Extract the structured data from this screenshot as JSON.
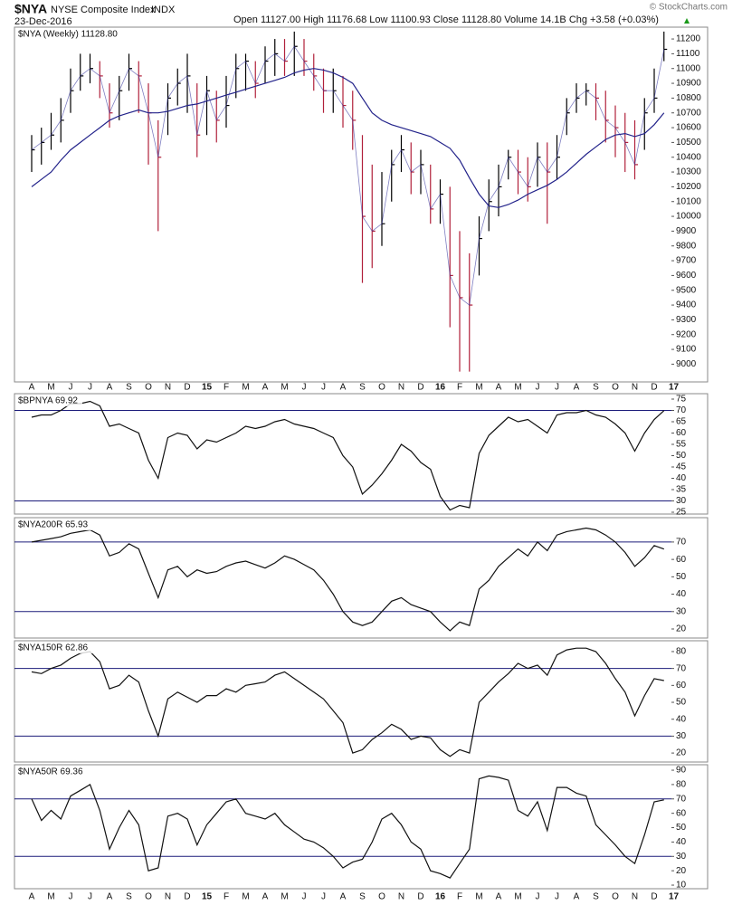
{
  "header": {
    "symbol": "$NYA",
    "name": "NYSE Composite Index",
    "exchange": "INDX",
    "date": "23-Dec-2016",
    "quote": "Open 11127.00  High 11176.68  Low 11100.93  Close 11128.80  Volume 14.1B  Chg +3.58 (+0.03%)",
    "credit": "© StockCharts.com"
  },
  "chart_data": [
    {
      "type": "ohlc",
      "legend": "$NYA (Weekly) 11128.80",
      "up_color": "#000000",
      "down_color": "#b0203a",
      "x_labels": [
        "A",
        "M",
        "J",
        "J",
        "A",
        "S",
        "O",
        "N",
        "D",
        "15",
        "F",
        "M",
        "A",
        "M",
        "J",
        "J",
        "A",
        "S",
        "O",
        "N",
        "D",
        "16",
        "F",
        "M",
        "A",
        "M",
        "J",
        "J",
        "A",
        "S",
        "O",
        "N",
        "D",
        "17"
      ],
      "close": [
        10450,
        10500,
        10550,
        10650,
        10850,
        10950,
        11000,
        10950,
        10700,
        10850,
        11000,
        10950,
        10700,
        10400,
        10800,
        10900,
        10950,
        10550,
        10850,
        10650,
        10750,
        11000,
        11050,
        10900,
        11050,
        11100,
        11050,
        11150,
        11050,
        10950,
        10850,
        10850,
        10750,
        10650,
        10000,
        9900,
        9950,
        10350,
        10450,
        10300,
        10350,
        10050,
        10150,
        9600,
        9450,
        9400,
        9850,
        10100,
        10200,
        10400,
        10300,
        10200,
        10400,
        10300,
        10400,
        10700,
        10800,
        10850,
        10800,
        10650,
        10600,
        10500,
        10350,
        10700,
        10800,
        11130
      ],
      "high": [
        10550,
        10600,
        10700,
        10800,
        11000,
        11100,
        11100,
        11050,
        10900,
        10950,
        11100,
        11050,
        10900,
        10650,
        10900,
        11000,
        11100,
        10900,
        10950,
        10850,
        10950,
        11100,
        11100,
        11050,
        11150,
        11200,
        11200,
        11250,
        11200,
        11100,
        11000,
        11000,
        10950,
        10850,
        10550,
        10350,
        10300,
        10450,
        10550,
        10500,
        10450,
        10350,
        10250,
        10200,
        9900,
        9750,
        10000,
        10250,
        10350,
        10450,
        10450,
        10400,
        10500,
        10500,
        10550,
        10800,
        10900,
        10900,
        10900,
        10850,
        10750,
        10700,
        10650,
        10800,
        11000,
        11250
      ],
      "low": [
        10300,
        10350,
        10450,
        10500,
        10700,
        10850,
        10900,
        10800,
        10600,
        10650,
        10850,
        10700,
        10350,
        9900,
        10550,
        10750,
        10700,
        10400,
        10550,
        10500,
        10600,
        10800,
        10850,
        10800,
        10900,
        10950,
        10950,
        10950,
        10950,
        10850,
        10700,
        10700,
        10600,
        10450,
        9550,
        9650,
        9800,
        10100,
        10300,
        10150,
        10150,
        9950,
        9950,
        9250,
        8950,
        8950,
        9600,
        9900,
        10000,
        10250,
        10150,
        10100,
        10200,
        9950,
        10250,
        10550,
        10700,
        10750,
        10650,
        10500,
        10400,
        10300,
        10250,
        10450,
        10700,
        11050
      ],
      "moving_average": {
        "color": "#22228a",
        "values": [
          10200,
          10250,
          10300,
          10380,
          10450,
          10500,
          10550,
          10600,
          10650,
          10680,
          10700,
          10720,
          10700,
          10700,
          10710,
          10730,
          10750,
          10760,
          10780,
          10800,
          10820,
          10840,
          10860,
          10880,
          10900,
          10920,
          10940,
          10970,
          10990,
          11000,
          10990,
          10970,
          10940,
          10900,
          10800,
          10700,
          10650,
          10620,
          10600,
          10580,
          10560,
          10540,
          10500,
          10460,
          10380,
          10260,
          10150,
          10070,
          10060,
          10080,
          10110,
          10150,
          10180,
          10210,
          10250,
          10300,
          10360,
          10420,
          10470,
          10520,
          10550,
          10560,
          10540,
          10560,
          10620,
          10700
        ]
      },
      "ylim": [
        8880,
        11280
      ],
      "yticks": [
        9000,
        9100,
        9200,
        9300,
        9400,
        9500,
        9600,
        9700,
        9800,
        9900,
        10000,
        10100,
        10200,
        10300,
        10400,
        10500,
        10600,
        10700,
        10800,
        10900,
        11000,
        11100,
        11200
      ]
    },
    {
      "type": "line",
      "legend": "$BPNYA 69.92",
      "color": "#111111",
      "reference_color": "#1c1c7a",
      "reference_lines": [
        70,
        30
      ],
      "values": [
        67,
        68,
        68,
        70,
        73,
        73,
        74,
        72,
        63,
        64,
        62,
        60,
        48,
        40,
        58,
        60,
        59,
        53,
        57,
        56,
        58,
        60,
        63,
        62,
        63,
        65,
        66,
        64,
        63,
        62,
        60,
        58,
        50,
        45,
        33,
        37,
        42,
        48,
        55,
        52,
        47,
        44,
        32,
        26,
        28,
        27,
        51,
        59,
        63,
        67,
        65,
        66,
        63,
        60,
        68,
        69,
        69,
        70,
        68,
        67,
        64,
        60,
        52,
        60,
        66,
        69.92
      ],
      "ylim": [
        24.2,
        77.4
      ],
      "yticks": [
        25,
        30,
        35,
        40,
        45,
        50,
        55,
        60,
        65,
        70,
        75
      ]
    },
    {
      "type": "line",
      "legend": "$NYA200R 65.93",
      "color": "#111111",
      "reference_color": "#1c1c7a",
      "reference_lines": [
        70,
        30
      ],
      "values": [
        70,
        71,
        72,
        73,
        75,
        76,
        77,
        74,
        62,
        64,
        69,
        66,
        52,
        38,
        54,
        56,
        50,
        54,
        52,
        53,
        56,
        58,
        59,
        57,
        55,
        58,
        62,
        60,
        57,
        54,
        48,
        40,
        30,
        24,
        22,
        24,
        30,
        36,
        38,
        34,
        32,
        30,
        24,
        19,
        24,
        22,
        43,
        48,
        56,
        61,
        66,
        62,
        70,
        65,
        74,
        76,
        77,
        78,
        77,
        74,
        70,
        64,
        56,
        61,
        68,
        65.93
      ],
      "ylim": [
        14.8,
        84
      ],
      "yticks": [
        20,
        30,
        40,
        50,
        60,
        70
      ]
    },
    {
      "type": "line",
      "legend": "$NYA150R 62.86",
      "color": "#111111",
      "reference_color": "#1c1c7a",
      "reference_lines": [
        70,
        30
      ],
      "values": [
        68,
        67,
        70,
        72,
        76,
        79,
        80,
        74,
        58,
        60,
        66,
        62,
        45,
        30,
        52,
        56,
        53,
        50,
        54,
        54,
        58,
        56,
        60,
        61,
        62,
        66,
        68,
        64,
        60,
        56,
        52,
        45,
        38,
        20,
        22,
        28,
        32,
        37,
        34,
        28,
        30,
        29,
        22,
        18,
        22,
        20,
        50,
        56,
        62,
        67,
        73,
        70,
        72,
        66,
        78,
        81,
        82,
        82,
        80,
        73,
        64,
        56,
        42,
        54,
        64,
        62.86
      ],
      "ylim": [
        14.7,
        86.4
      ],
      "yticks": [
        20,
        30,
        40,
        50,
        60,
        70,
        80
      ]
    },
    {
      "type": "line",
      "legend": "$NYA50R 69.36",
      "color": "#111111",
      "reference_color": "#1c1c7a",
      "reference_lines": [
        70,
        30
      ],
      "x_labels": [
        "A",
        "M",
        "J",
        "J",
        "A",
        "S",
        "O",
        "N",
        "D",
        "15",
        "F",
        "M",
        "A",
        "M",
        "J",
        "J",
        "A",
        "S",
        "O",
        "N",
        "D",
        "16",
        "F",
        "M",
        "A",
        "M",
        "J",
        "J",
        "A",
        "S",
        "O",
        "N",
        "D",
        "17"
      ],
      "values": [
        70,
        55,
        62,
        56,
        72,
        76,
        80,
        62,
        35,
        50,
        62,
        52,
        20,
        22,
        58,
        60,
        56,
        38,
        52,
        60,
        68,
        70,
        60,
        58,
        56,
        60,
        52,
        47,
        42,
        40,
        36,
        30,
        22,
        26,
        28,
        40,
        56,
        60,
        52,
        40,
        35,
        20,
        18,
        15,
        25,
        35,
        84,
        86,
        85,
        83,
        62,
        58,
        68,
        48,
        78,
        78,
        74,
        72,
        52,
        45,
        38,
        30,
        25,
        45,
        68,
        69.36
      ],
      "ylim": [
        7.5,
        93.8
      ],
      "yticks": [
        10,
        20,
        30,
        40,
        50,
        60,
        70,
        80,
        90
      ]
    }
  ]
}
